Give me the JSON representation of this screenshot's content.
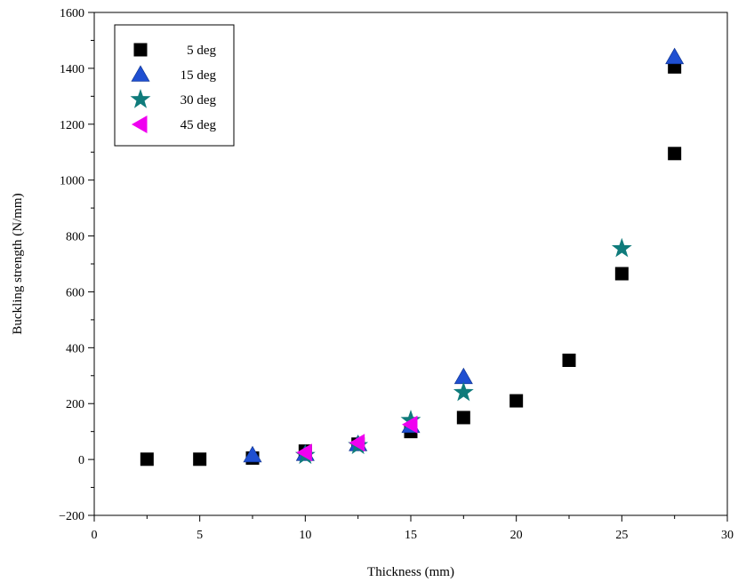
{
  "chart_data": {
    "type": "scatter",
    "title": "",
    "xlabel": "Thickness (mm)",
    "ylabel": "Buckling strength (N/mm)",
    "xlim": [
      0,
      30
    ],
    "ylim": [
      -200,
      1600
    ],
    "x_ticks": [
      0,
      5,
      10,
      15,
      20,
      25,
      30
    ],
    "x_tick_labels": [
      "0",
      "5",
      "10",
      "15",
      "20",
      "25",
      "30"
    ],
    "y_ticks": [
      -200,
      0,
      200,
      400,
      600,
      800,
      1000,
      1200,
      1400,
      1600
    ],
    "y_tick_labels": [
      "−200",
      "0",
      "200",
      "400",
      "600",
      "800",
      "1000",
      "1200",
      "1400",
      "1600"
    ],
    "grid": false,
    "legend_position": "top-left",
    "series": [
      {
        "name": "5 deg",
        "marker": "square",
        "color": "#000000",
        "points": [
          [
            2.5,
            1
          ],
          [
            5,
            1
          ],
          [
            7.5,
            5
          ],
          [
            10,
            30
          ],
          [
            12.5,
            55
          ],
          [
            15,
            100
          ],
          [
            17.5,
            150
          ],
          [
            20,
            210
          ],
          [
            22.5,
            355
          ],
          [
            25,
            665
          ],
          [
            27.5,
            1095
          ],
          [
            27.5,
            1405
          ]
        ]
      },
      {
        "name": "15 deg",
        "marker": "triangle-up",
        "color": "#1f4fd1",
        "points": [
          [
            7.5,
            15
          ],
          [
            10,
            20
          ],
          [
            12.5,
            55
          ],
          [
            15,
            120
          ],
          [
            17.5,
            295
          ],
          [
            27.5,
            1440
          ]
        ]
      },
      {
        "name": "30 deg",
        "marker": "star",
        "color": "#0f7b7b",
        "points": [
          [
            10,
            15
          ],
          [
            12.5,
            50
          ],
          [
            15,
            140
          ],
          [
            17.5,
            240
          ],
          [
            25,
            755
          ]
        ]
      },
      {
        "name": "45 deg",
        "marker": "triangle-left",
        "color": "#f000f0",
        "points": [
          [
            10,
            25
          ],
          [
            12.5,
            60
          ],
          [
            15,
            125
          ]
        ]
      }
    ]
  }
}
